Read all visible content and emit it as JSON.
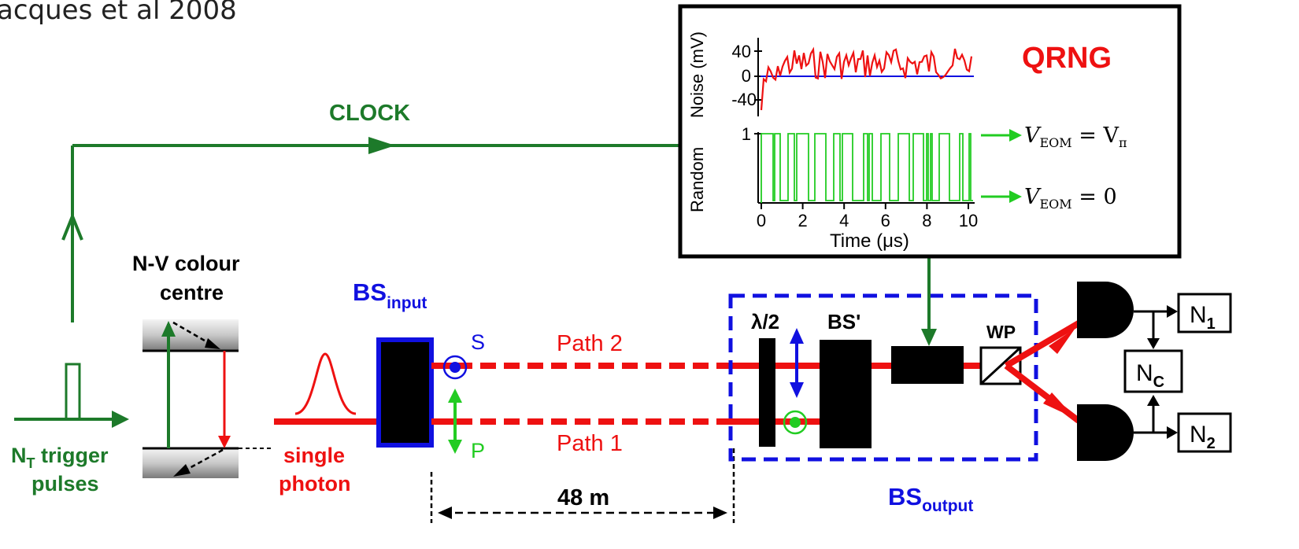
{
  "header": {
    "citation": "acques et al 2008"
  },
  "labels": {
    "clock": "CLOCK",
    "nv_line1": "N-V colour",
    "nv_line2": "centre",
    "trigger_line1_main": "N",
    "trigger_line1_sub": "T",
    "trigger_line1_rest": " trigger",
    "trigger_line2": "pulses",
    "single": "single",
    "photon": "photon",
    "bs_input_main": "BS",
    "bs_input_sub": "input",
    "s": "S",
    "p": "P",
    "path2": "Path 2",
    "path1": "Path 1",
    "distance": "48 m",
    "half_wave": "λ/2",
    "bs_prime": "BS'",
    "wp": "WP",
    "bs_output_main": "BS",
    "bs_output_sub": "output",
    "n1_main": "N",
    "n1_sub": "1",
    "nc_main": "N",
    "nc_sub": "C",
    "n2_main": "N",
    "n2_sub": "2"
  },
  "inset": {
    "title": "QRNG",
    "noise_ylabel": "Noise (mV)",
    "random_ylabel": "Random",
    "noise_ticks": [
      "40",
      "0",
      "-40"
    ],
    "random_tick": "1",
    "x_ticks": [
      "0",
      "2",
      "4",
      "6",
      "8",
      "10"
    ],
    "xlabel": "Time (μs)",
    "veom_high_main": "V",
    "veom_high_sub": "EOM",
    "veom_high_rest": " = V",
    "veom_high_pi": "π",
    "veom_low_main": "V",
    "veom_low_sub": "EOM",
    "veom_low_rest": " = 0"
  },
  "colors": {
    "green": "#1d7a2a",
    "red": "#ee1111",
    "blue": "#1010e0",
    "bright_green": "#22cc22",
    "black": "#000000"
  }
}
